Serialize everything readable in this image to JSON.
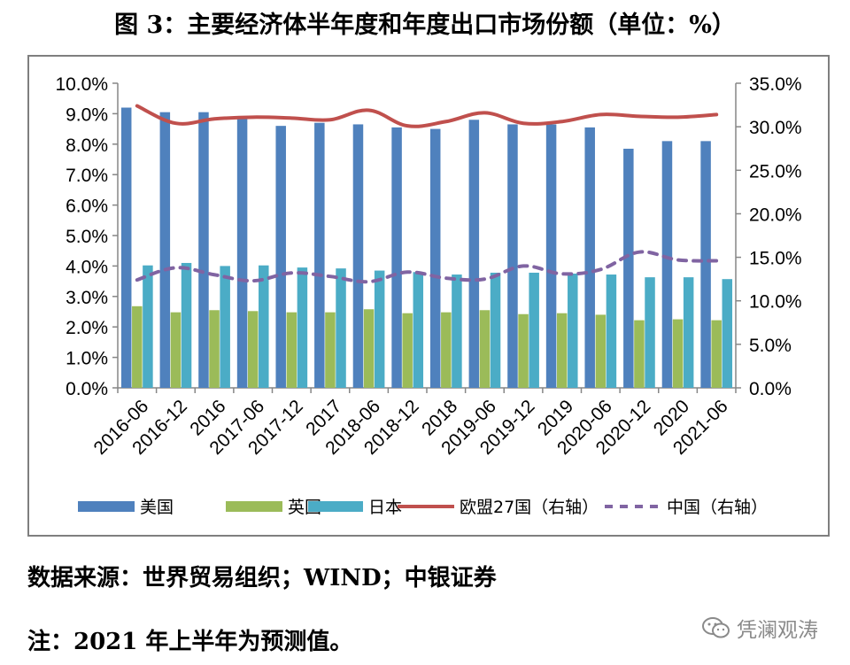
{
  "title": "图 3：主要经济体半年度和年度出口市场份额（单位：%）",
  "source": "数据来源：世界贸易组织；WIND；中银证券",
  "note": "注：2021 年上半年为预测值。",
  "watermark": "凭澜观涛",
  "watermark_icon": "wechat-icon",
  "chart_data": {
    "type": "bar",
    "categories": [
      "2016-06",
      "2016-12",
      "2016",
      "2017-06",
      "2017-12",
      "2017",
      "2018-06",
      "2018-12",
      "2018",
      "2019-06",
      "2019-12",
      "2019",
      "2020-06",
      "2020-12",
      "2020",
      "2021-06"
    ],
    "left_axis": {
      "ylim": [
        0,
        10
      ],
      "ticks": [
        "0.0%",
        "1.0%",
        "2.0%",
        "3.0%",
        "4.0%",
        "5.0%",
        "6.0%",
        "7.0%",
        "8.0%",
        "9.0%",
        "10.0%"
      ]
    },
    "right_axis": {
      "ylim": [
        0,
        35
      ],
      "ticks": [
        "0.0%",
        "5.0%",
        "10.0%",
        "15.0%",
        "20.0%",
        "25.0%",
        "30.0%",
        "35.0%"
      ]
    },
    "series": [
      {
        "name": "美国",
        "type": "bar",
        "axis": "left",
        "color": "#4f81bd",
        "values": [
          9.2,
          9.05,
          9.05,
          8.9,
          8.6,
          8.7,
          8.65,
          8.55,
          8.5,
          8.8,
          8.65,
          8.65,
          8.55,
          7.85,
          8.1,
          8.1
        ]
      },
      {
        "name": "英国",
        "type": "bar",
        "axis": "left",
        "color": "#9bbb59",
        "values": [
          2.68,
          2.48,
          2.55,
          2.52,
          2.48,
          2.48,
          2.58,
          2.45,
          2.48,
          2.55,
          2.42,
          2.45,
          2.4,
          2.22,
          2.25,
          2.22
        ]
      },
      {
        "name": "日本",
        "type": "bar",
        "axis": "left",
        "color": "#4bacc6",
        "values": [
          4.02,
          4.1,
          4.0,
          4.02,
          3.95,
          3.92,
          3.85,
          3.8,
          3.72,
          3.78,
          3.78,
          3.75,
          3.72,
          3.63,
          3.63,
          3.57
        ]
      },
      {
        "name": "欧盟27国（右轴）",
        "type": "line",
        "axis": "right",
        "color": "#c0504d",
        "dash": false,
        "values": [
          32.4,
          30.4,
          30.9,
          31.1,
          31.0,
          30.8,
          31.9,
          30.1,
          30.6,
          31.6,
          30.4,
          30.6,
          31.4,
          31.2,
          31.1,
          31.4
        ]
      },
      {
        "name": "中国（右轴）",
        "type": "line",
        "axis": "right",
        "color": "#8064a2",
        "dash": true,
        "values": [
          12.4,
          13.8,
          13.0,
          12.3,
          13.2,
          12.8,
          12.2,
          13.3,
          12.6,
          12.5,
          14.0,
          13.1,
          13.6,
          15.6,
          14.7,
          14.6
        ]
      }
    ]
  }
}
